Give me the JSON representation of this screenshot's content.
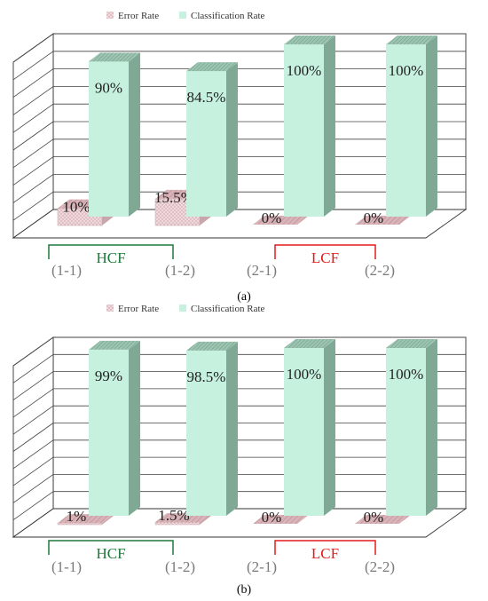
{
  "chart_data": [
    {
      "type": "bar",
      "panel_label": "(a)",
      "categories": [
        "(1-1)",
        "(1-2)",
        "(2-1)",
        "(2-2)"
      ],
      "series": [
        {
          "name": "Error Rate",
          "values": [
            10,
            15.5,
            0,
            0
          ],
          "labels": [
            "10%",
            "15.5%",
            "0%",
            "0%"
          ]
        },
        {
          "name": "Classification Rate",
          "values": [
            90,
            84.5,
            100,
            100
          ],
          "labels": [
            "90%",
            "84.5%",
            "100%",
            "100%"
          ]
        }
      ],
      "groups": [
        {
          "label": "HCF",
          "categories": [
            "(1-1)",
            "(1-2)"
          ]
        },
        {
          "label": "LCF",
          "categories": [
            "(2-1)",
            "(2-2)"
          ]
        }
      ],
      "ylim": [
        0,
        100
      ],
      "legend_position": "top"
    },
    {
      "type": "bar",
      "panel_label": "(b)",
      "categories": [
        "(1-1)",
        "(1-2)",
        "(2-1)",
        "(2-2)"
      ],
      "series": [
        {
          "name": "Error Rate",
          "values": [
            1,
            1.5,
            0,
            0
          ],
          "labels": [
            "1%",
            "1.5%",
            "0%",
            "0%"
          ]
        },
        {
          "name": "Classification Rate",
          "values": [
            99,
            98.5,
            100,
            100
          ],
          "labels": [
            "99%",
            "98.5%",
            "100%",
            "100%"
          ]
        }
      ],
      "groups": [
        {
          "label": "HCF",
          "categories": [
            "(1-1)",
            "(1-2)"
          ]
        },
        {
          "label": "LCF",
          "categories": [
            "(2-1)",
            "(2-2)"
          ]
        }
      ],
      "ylim": [
        0,
        100
      ],
      "legend_position": "top"
    }
  ],
  "colors": {
    "error_face": "#efd9dc",
    "error_top": "#e3c3c8",
    "error_side": "#c9a6ab",
    "class_face": "#c6f1df",
    "class_top": "#8fb9a6",
    "class_side": "#7fa895",
    "hcf": "#1f7a3a",
    "lcf": "#e31b1b",
    "category_text": "#7a7a7a"
  }
}
